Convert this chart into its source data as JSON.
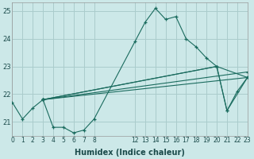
{
  "xlabel": "Humidex (Indice chaleur)",
  "background_color": "#cce8e8",
  "grid_color": "#aacccc",
  "line_color": "#1a6b5e",
  "main_series": {
    "x": [
      0,
      1,
      2,
      3,
      4,
      5,
      6,
      7,
      8,
      12,
      13,
      14,
      15,
      16,
      17,
      18,
      19,
      20,
      21,
      22,
      23
    ],
    "y": [
      21.7,
      21.1,
      21.5,
      21.8,
      20.8,
      20.8,
      20.6,
      20.7,
      21.1,
      23.9,
      24.6,
      25.1,
      24.7,
      24.8,
      24.0,
      23.7,
      23.3,
      23.0,
      21.4,
      22.1,
      22.6
    ]
  },
  "straight_lines": [
    {
      "x": [
        3,
        23
      ],
      "y": [
        21.8,
        22.6
      ]
    },
    {
      "x": [
        3,
        23
      ],
      "y": [
        21.8,
        22.8
      ]
    },
    {
      "x": [
        3,
        20,
        23
      ],
      "y": [
        21.8,
        23.0,
        22.6
      ]
    },
    {
      "x": [
        3,
        20,
        21,
        23
      ],
      "y": [
        21.8,
        23.0,
        21.4,
        22.6
      ]
    }
  ],
  "xlim": [
    0,
    23
  ],
  "ylim": [
    20.5,
    25.3
  ],
  "yticks": [
    21,
    22,
    23,
    24,
    25
  ],
  "xticks": [
    0,
    1,
    2,
    3,
    4,
    5,
    6,
    7,
    8,
    12,
    13,
    14,
    15,
    16,
    17,
    18,
    19,
    20,
    21,
    22,
    23
  ],
  "tick_fontsize": 5.5,
  "label_fontsize": 7
}
